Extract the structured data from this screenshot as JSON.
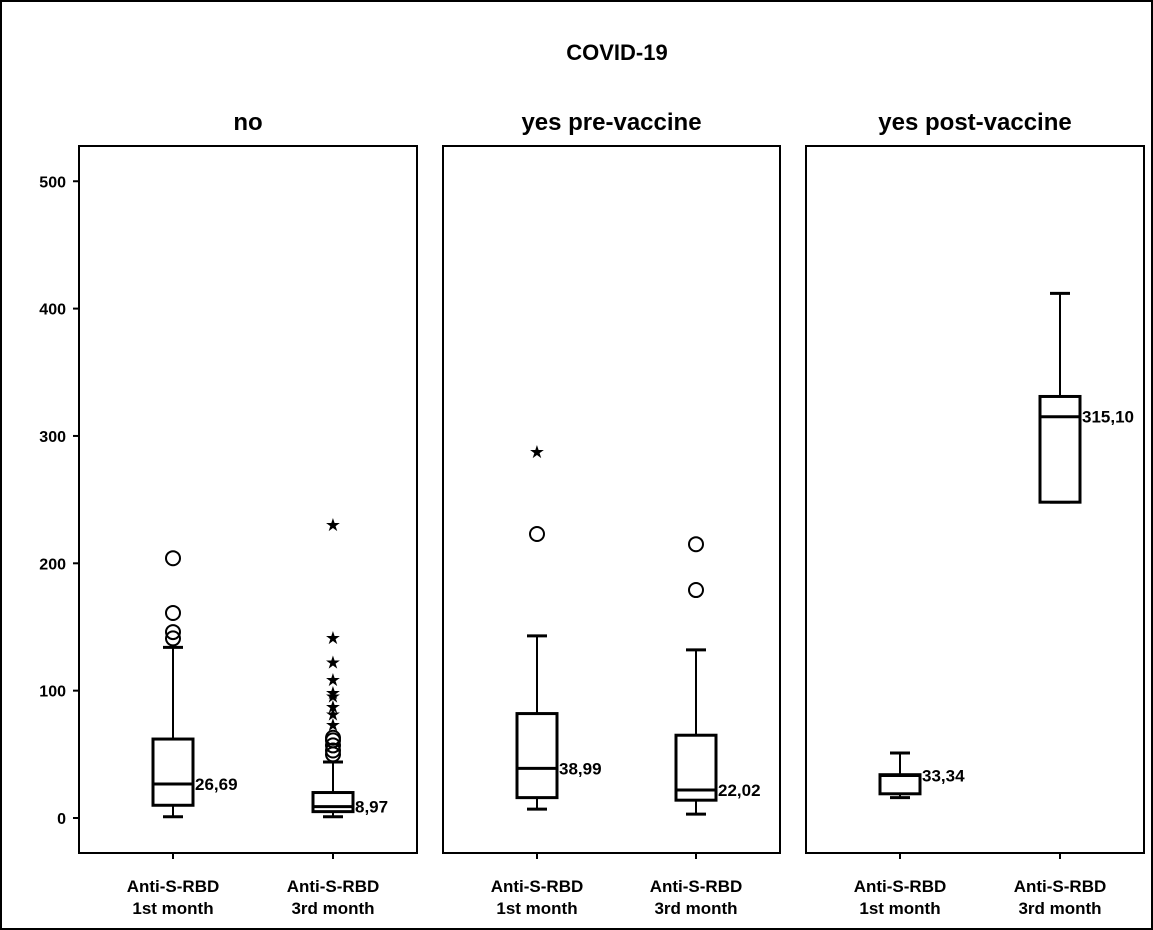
{
  "chart_data": {
    "type": "boxplot",
    "title": "COVID-19",
    "ylim": [
      -28,
      525
    ],
    "y_ticks": [
      "0",
      "100",
      "200",
      "300",
      "400",
      "500"
    ],
    "y_tick_values": [
      0,
      100,
      200,
      300,
      400,
      500
    ],
    "grid": false,
    "facets": [
      {
        "name": "no",
        "boxes": [
          {
            "label_line1": "Anti-S-RBD",
            "label_line2": "1st month",
            "min": 1,
            "q1": 10,
            "median": 26.69,
            "q3": 62,
            "max": 134,
            "median_label": "26,69",
            "outliers": [
              141,
              146,
              161,
              204
            ],
            "extremes": []
          },
          {
            "label_line1": "Anti-S-RBD",
            "label_line2": "3rd month",
            "min": 1,
            "q1": 5,
            "median": 8.97,
            "q3": 20,
            "max": 44,
            "median_label": "8,97",
            "outliers": [
              50,
              53,
              57,
              61,
              63
            ],
            "extremes": [
              74,
              82,
              88,
              96,
              99,
              109,
              123,
              142,
              231
            ]
          }
        ]
      },
      {
        "name": "yes pre-vaccine",
        "boxes": [
          {
            "label_line1": "Anti-S-RBD",
            "label_line2": "1st month",
            "min": 7,
            "q1": 16,
            "median": 38.99,
            "q3": 82,
            "max": 143,
            "median_label": "38,99",
            "outliers": [
              223
            ],
            "extremes": [
              288
            ]
          },
          {
            "label_line1": "Anti-S-RBD",
            "label_line2": "3rd month",
            "min": 3,
            "q1": 14,
            "median": 22.02,
            "q3": 65,
            "max": 132,
            "median_label": "22,02",
            "outliers": [
              179,
              215
            ],
            "extremes": []
          }
        ]
      },
      {
        "name": "yes post-vaccine",
        "boxes": [
          {
            "label_line1": "Anti-S-RBD",
            "label_line2": "1st month",
            "min": 16,
            "q1": 19,
            "median": 33.34,
            "q3": 34,
            "max": 51,
            "median_label": "33,34",
            "outliers": [],
            "extremes": []
          },
          {
            "label_line1": "Anti-S-RBD",
            "label_line2": "3rd month",
            "min": 248,
            "q1": 248,
            "median": 315.1,
            "q3": 331,
            "max": 412,
            "median_label": "315,10",
            "outliers": [],
            "extremes": []
          }
        ]
      }
    ]
  }
}
